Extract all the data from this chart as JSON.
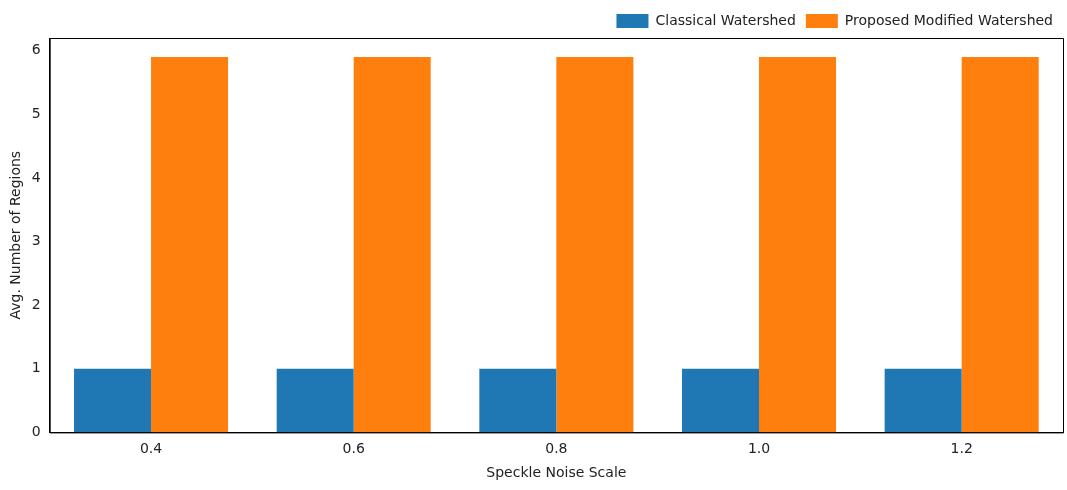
{
  "chart_data": {
    "type": "bar",
    "xlabel": "Speckle Noise Scale",
    "ylabel": "Avg. Number of Regions",
    "categories": [
      "0.4",
      "0.6",
      "0.8",
      "1.0",
      "1.2"
    ],
    "series": [
      {
        "name": "Classical Watershed",
        "color": "#1f77b4",
        "values": [
          1,
          1,
          1,
          1,
          1
        ]
      },
      {
        "name": "Proposed Modified Watershed",
        "color": "#ff7f0e",
        "values": [
          5.9,
          5.9,
          5.9,
          5.9,
          5.9
        ]
      }
    ],
    "ylim": [
      0,
      6.2
    ],
    "yticks": [
      0,
      1,
      2,
      3,
      4,
      5,
      6
    ],
    "grid": false,
    "legend": "top right"
  }
}
